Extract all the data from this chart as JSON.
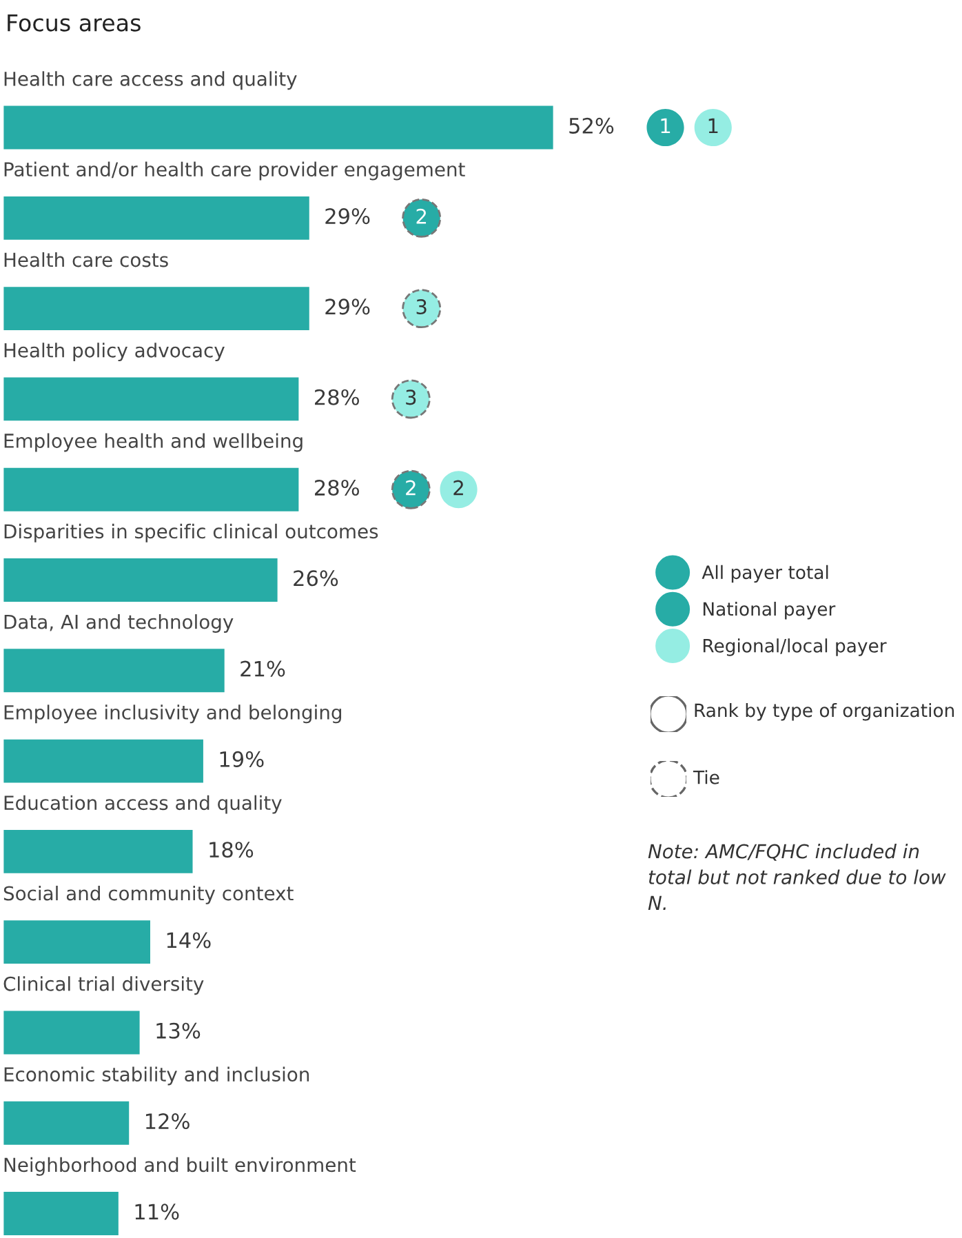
{
  "chart_data": {
    "type": "bar",
    "orientation": "horizontal",
    "title": "Focus areas",
    "categories": [
      "Health care access and quality",
      "Patient and/or health care provider engagement",
      "Health care costs",
      "Health policy advocacy",
      "Employee health and wellbeing",
      "Disparities in specific clinical outcomes",
      "Data, AI and technology",
      "Employee inclusivity and belonging",
      "Education access and quality",
      "Social and community context",
      "Clinical trial diversity",
      "Economic stability and inclusion",
      "Neighborhood and built environment"
    ],
    "series": [
      {
        "name": "All payer total",
        "type": "bar",
        "color": "#27aca6",
        "values": [
          52,
          29,
          29,
          28,
          28,
          26,
          21,
          19,
          18,
          14,
          13,
          12,
          11
        ],
        "value_labels": [
          "52%",
          "29%",
          "29%",
          "28%",
          "28%",
          "26%",
          "21%",
          "19%",
          "18%",
          "14%",
          "13%",
          "12%",
          "11%"
        ]
      },
      {
        "name": "National payer",
        "type": "scatter",
        "color": "#27aca6",
        "values": [
          null,
          null,
          null,
          null,
          null,
          null,
          null,
          null,
          null,
          null,
          null,
          null,
          null
        ],
        "value_labels": [
          "1",
          "2",
          null,
          null,
          "2",
          null,
          null,
          null,
          null,
          null,
          null,
          null,
          null
        ]
      },
      {
        "name": "Regional/local payer",
        "type": "scatter",
        "color": "#95ede3",
        "values": [
          null,
          null,
          null,
          null,
          null,
          null,
          null,
          null,
          null,
          null,
          null,
          null,
          null
        ],
        "value_labels": [
          "1",
          null,
          "3",
          "3",
          "2",
          null,
          null,
          null,
          null,
          null,
          null,
          null,
          null
        ]
      }
    ],
    "legend": "right",
    "annotations": [
      "Rank by type of organization",
      "Tie",
      "Note: AMC/FQHC included in total but not ranked due to low N."
    ]
  }
}
